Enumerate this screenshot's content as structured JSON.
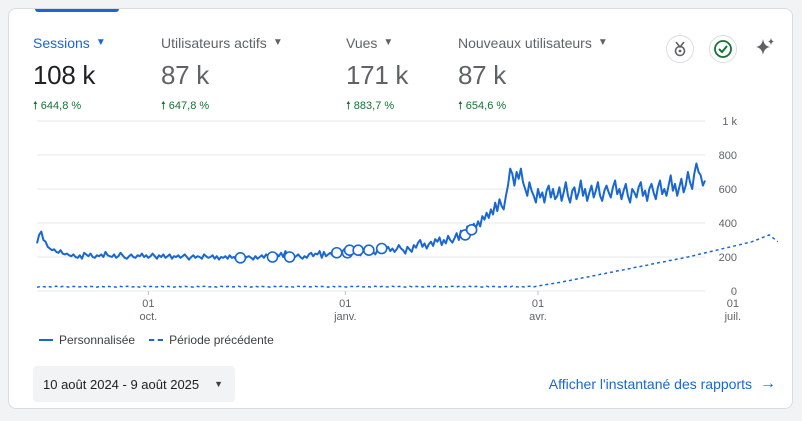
{
  "metrics": [
    {
      "label": "Sessions",
      "value": "108 k",
      "change": "644,8 %"
    },
    {
      "label": "Utilisateurs actifs",
      "value": "87 k",
      "change": "647,8 %"
    },
    {
      "label": "Vues",
      "value": "171 k",
      "change": "883,7 %"
    },
    {
      "label": "Nouveaux utilisateurs",
      "value": "87 k",
      "change": "654,6 %"
    }
  ],
  "icons": {
    "insights": "insights-icon",
    "check": "check-circle-icon",
    "sparkle": "sparkle-icon"
  },
  "chart_data": {
    "type": "line",
    "y_ticks": [
      "0",
      "200",
      "400",
      "600",
      "800",
      "1 k"
    ],
    "ylim": [
      0,
      1000
    ],
    "x_ticks": [
      {
        "day": "01",
        "month": "oct."
      },
      {
        "day": "01",
        "month": "janv."
      },
      {
        "day": "01",
        "month": "avr."
      },
      {
        "day": "01",
        "month": "juil."
      }
    ],
    "x_tick_index": [
      52,
      144,
      234,
      325
    ],
    "series": [
      {
        "name": "Personnalisée",
        "style": "solid",
        "values": [
          280,
          330,
          350,
          300,
          290,
          260,
          250,
          240,
          245,
          230,
          225,
          240,
          220,
          215,
          220,
          210,
          205,
          215,
          200,
          195,
          210,
          190,
          225,
          215,
          205,
          220,
          200,
          195,
          210,
          205,
          215,
          200,
          230,
          210,
          205,
          200,
          215,
          195,
          205,
          225,
          210,
          195,
          190,
          205,
          215,
          200,
          195,
          210,
          205,
          220,
          200,
          210,
          195,
          205,
          220,
          205,
          190,
          210,
          200,
          215,
          195,
          205,
          215,
          190,
          205,
          200,
          210,
          195,
          205,
          215,
          200,
          185,
          200,
          210,
          195,
          205,
          200,
          190,
          215,
          205,
          195,
          200,
          210,
          190,
          205,
          185,
          200,
          195,
          205,
          190,
          210,
          195,
          200,
          185,
          205,
          195,
          210,
          190,
          200,
          205,
          195,
          185,
          205,
          190,
          200,
          210,
          195,
          215,
          205,
          220,
          200,
          195,
          215,
          205,
          225,
          200,
          235,
          210,
          200,
          215,
          195,
          205,
          215,
          200,
          190,
          205,
          195,
          215,
          225,
          205,
          220,
          215,
          235,
          195,
          230,
          205,
          215,
          225,
          210,
          240,
          225,
          210,
          235,
          220,
          245,
          225,
          240,
          215,
          255,
          230,
          240,
          210,
          230,
          245,
          225,
          240,
          250,
          230,
          215,
          240,
          230,
          250,
          225,
          245,
          260,
          235,
          250,
          230,
          245,
          270,
          250,
          240,
          220,
          260,
          245,
          230,
          270,
          255,
          285,
          300,
          260,
          280,
          250,
          275,
          290,
          265,
          305,
          290,
          315,
          270,
          300,
          280,
          325,
          300,
          285,
          310,
          340,
          300,
          355,
          320,
          330,
          380,
          340,
          360,
          395,
          370,
          410,
          380,
          440,
          420,
          460,
          430,
          480,
          450,
          520,
          470,
          540,
          500,
          480,
          560,
          620,
          720,
          690,
          620,
          700,
          660,
          720,
          640,
          600,
          560,
          640,
          590,
          560,
          520,
          600,
          550,
          580,
          520,
          590,
          620,
          550,
          600,
          540,
          560,
          610,
          530,
          580,
          640,
          560,
          520,
          590,
          610,
          540,
          580,
          650,
          560,
          600,
          530,
          580,
          620,
          550,
          590,
          640,
          560,
          530,
          590,
          620,
          580,
          550,
          610,
          650,
          570,
          600,
          540,
          590,
          630,
          560,
          520,
          600,
          580,
          550,
          610,
          640,
          560,
          590,
          530,
          600,
          630,
          580,
          540,
          610,
          650,
          570,
          600,
          560,
          620,
          680,
          590,
          630,
          560,
          610,
          660,
          580,
          620,
          700,
          640,
          600,
          690,
          750,
          700,
          680,
          620,
          650
        ]
      },
      {
        "name": "Période précédente",
        "style": "dashed",
        "values": [
          22,
          25,
          28,
          26,
          24,
          27,
          25,
          23,
          26,
          28,
          25,
          24,
          27,
          26,
          25,
          23,
          24,
          27,
          26,
          25,
          24,
          26,
          28,
          25,
          24,
          27,
          26,
          25,
          23,
          26,
          28,
          25,
          24,
          27,
          26,
          25,
          24,
          23,
          26,
          27,
          25,
          24,
          28,
          26,
          25,
          24,
          27,
          25,
          23,
          26,
          28,
          25,
          24,
          27,
          26,
          25,
          24,
          26,
          28,
          25,
          24,
          27,
          26,
          25,
          23,
          26,
          28,
          25,
          24,
          27,
          26,
          25,
          24,
          23,
          26,
          27,
          25,
          24,
          28,
          26,
          25,
          24,
          27,
          25,
          23,
          26,
          28,
          25,
          24,
          27,
          26,
          25,
          24,
          26,
          28,
          25,
          24,
          27,
          26,
          25,
          23,
          26,
          28,
          25,
          24,
          27,
          26,
          25,
          24,
          23,
          26,
          27,
          25,
          24,
          28,
          26,
          25,
          24,
          27,
          25,
          23,
          26,
          28,
          25,
          24,
          27,
          26,
          25,
          24,
          26,
          28,
          25,
          24,
          27,
          26,
          25,
          23,
          26,
          28,
          25,
          24,
          27,
          26,
          25,
          24,
          23,
          26,
          27,
          25,
          24,
          28,
          26,
          25,
          24,
          27,
          25,
          23,
          26,
          28,
          25,
          24,
          27,
          26,
          25,
          24,
          26,
          28,
          25,
          24,
          27,
          26,
          25,
          23,
          26,
          28,
          25,
          24,
          27,
          26,
          25,
          24,
          23,
          26,
          27,
          25,
          24,
          28,
          26,
          25,
          24,
          27,
          25,
          23,
          26,
          28,
          25,
          24,
          27,
          26,
          25,
          24,
          26,
          28,
          25,
          24,
          27,
          26,
          25,
          23,
          26,
          28,
          25,
          24,
          27,
          26,
          25,
          24,
          23,
          26,
          27,
          25,
          24,
          28,
          26,
          25,
          24,
          27,
          25,
          23,
          26,
          28,
          25,
          24,
          27,
          30,
          32,
          34,
          36,
          38,
          40,
          42,
          44,
          46,
          48,
          50,
          52,
          55,
          58,
          60,
          62,
          65,
          68,
          70,
          72,
          75,
          78,
          80,
          82,
          85,
          88,
          90,
          92,
          95,
          98,
          100,
          102,
          105,
          108,
          110,
          112,
          115,
          118,
          120,
          122,
          125,
          128,
          130,
          132,
          135,
          138,
          140,
          142,
          145,
          148,
          150,
          152,
          155,
          158,
          160,
          162,
          165,
          168,
          170,
          172,
          175,
          178,
          180,
          182,
          185,
          188,
          190,
          192,
          195,
          198,
          200,
          203,
          206,
          209,
          212,
          215,
          218,
          221,
          224,
          227,
          230,
          233,
          236,
          239,
          242,
          245,
          248,
          251,
          254,
          257,
          260,
          263,
          266,
          269,
          272,
          275,
          278,
          281,
          284,
          287,
          290,
          295,
          300,
          305,
          310,
          315,
          320,
          325,
          330,
          320,
          310,
          300,
          290
        ]
      }
    ],
    "annotations_at": [
      95,
      110,
      118,
      140,
      145,
      146,
      150,
      155,
      161,
      200,
      203
    ]
  },
  "legend": {
    "current": "Personnalisée",
    "previous": "Période précédente"
  },
  "footer": {
    "date_range": "10 août 2024 - 9 août 2025",
    "snapshot_link": "Afficher l'instantané des rapports"
  }
}
